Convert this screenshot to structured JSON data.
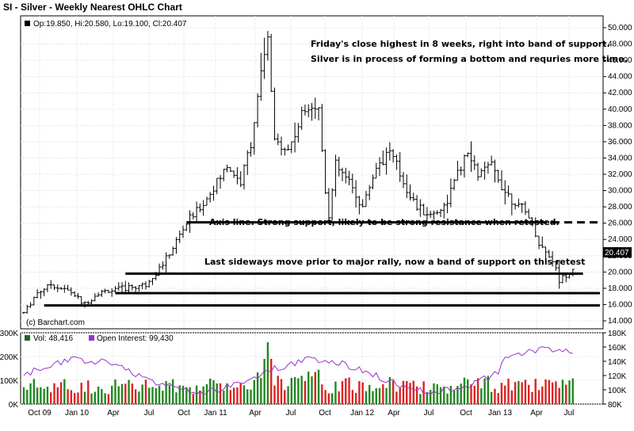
{
  "chart_data": {
    "type": "bar",
    "title": "SI - Silver - Weekly Nearest OHLC Chart",
    "ohlc_label": "Op:19.850, Hi:20.580, Lo:19.100, Cl:20.407",
    "copyright": "(c) Barchart.com",
    "last_price_label": "20.407",
    "price_ylim": [
      14,
      50
    ],
    "price_ticks": [
      "14.000",
      "16.000",
      "18.000",
      "20.000",
      "22.000",
      "24.000",
      "26.000",
      "28.000",
      "30.000",
      "32.000",
      "34.000",
      "36.000",
      "38.000",
      "40.000",
      "42.000",
      "44.000",
      "46.000",
      "48.000",
      "50.000"
    ],
    "x_ticks": [
      "Oct 09",
      "Jan 10",
      "Apr",
      "Jul",
      "Oct",
      "Jan 11",
      "Apr",
      "Jul",
      "Oct",
      "Jan 12",
      "Apr",
      "Jul",
      "Oct",
      "Jan 13",
      "Apr",
      "Jul"
    ],
    "series_anchors": [
      {
        "week": 0,
        "price": 15
      },
      {
        "week": 4,
        "price": 17.5
      },
      {
        "week": 8,
        "price": 18.5
      },
      {
        "week": 14,
        "price": 17.5
      },
      {
        "week": 18,
        "price": 16
      },
      {
        "week": 22,
        "price": 17.5
      },
      {
        "week": 30,
        "price": 18
      },
      {
        "week": 36,
        "price": 18.5
      },
      {
        "week": 42,
        "price": 21.5
      },
      {
        "week": 48,
        "price": 26
      },
      {
        "week": 54,
        "price": 29
      },
      {
        "week": 60,
        "price": 33
      },
      {
        "week": 64,
        "price": 31
      },
      {
        "week": 67,
        "price": 36
      },
      {
        "week": 70,
        "price": 44
      },
      {
        "week": 72,
        "price": 48.5
      },
      {
        "week": 74,
        "price": 36
      },
      {
        "week": 78,
        "price": 35
      },
      {
        "week": 84,
        "price": 41
      },
      {
        "week": 87,
        "price": 40
      },
      {
        "week": 89,
        "price": 30
      },
      {
        "week": 90,
        "price": 27
      },
      {
        "week": 92,
        "price": 33
      },
      {
        "week": 96,
        "price": 31
      },
      {
        "week": 100,
        "price": 28
      },
      {
        "week": 104,
        "price": 33
      },
      {
        "week": 108,
        "price": 35
      },
      {
        "week": 112,
        "price": 31
      },
      {
        "week": 116,
        "price": 28
      },
      {
        "week": 120,
        "price": 27
      },
      {
        "week": 124,
        "price": 28
      },
      {
        "week": 128,
        "price": 32
      },
      {
        "week": 131,
        "price": 34.5
      },
      {
        "week": 134,
        "price": 32
      },
      {
        "week": 138,
        "price": 33
      },
      {
        "week": 142,
        "price": 30
      },
      {
        "week": 146,
        "price": 28
      },
      {
        "week": 149,
        "price": 27
      },
      {
        "week": 152,
        "price": 23.5
      },
      {
        "week": 156,
        "price": 21.5
      },
      {
        "week": 158,
        "price": 19
      },
      {
        "week": 162,
        "price": 20.4
      }
    ],
    "lines": [
      {
        "label": "Axis line.  Strong support, likely to be strong resistance when retested.",
        "price": 26.1,
        "from_week": 48,
        "to_week": 152,
        "dashed_to_week": 170
      },
      {
        "label": "Last sideways move prior to major rally, now a band of support on this retest",
        "price": 19.8,
        "from_week": 30,
        "to_week": 165
      },
      {
        "label": "",
        "price": 17.4,
        "from_week": 27,
        "to_week": 170
      },
      {
        "label": "",
        "price": 15.9,
        "from_week": 6,
        "to_week": 170
      }
    ],
    "annotation_top": [
      "Friday's close highest in 8 weeks, right into band of support.",
      "Silver is in process of forming a bottom and requries more time."
    ],
    "volume_legend": "Vol: 48,416",
    "oi_legend": "Open Interest: 99,430",
    "volume_ylim": [
      0,
      300000
    ],
    "volume_ticks": [
      "0K",
      "100K",
      "200K",
      "300K"
    ],
    "oi_ylim": [
      80000,
      180000
    ],
    "oi_ticks": [
      "80K",
      "100K",
      "120K",
      "140K",
      "160K",
      "180K"
    ],
    "colors": {
      "bar": "#000000",
      "vol_up": "#228822",
      "vol_down": "#dd2222",
      "oi": "#9933cc",
      "legend_vol": "#226622",
      "legend_oi": "#9933cc"
    }
  }
}
